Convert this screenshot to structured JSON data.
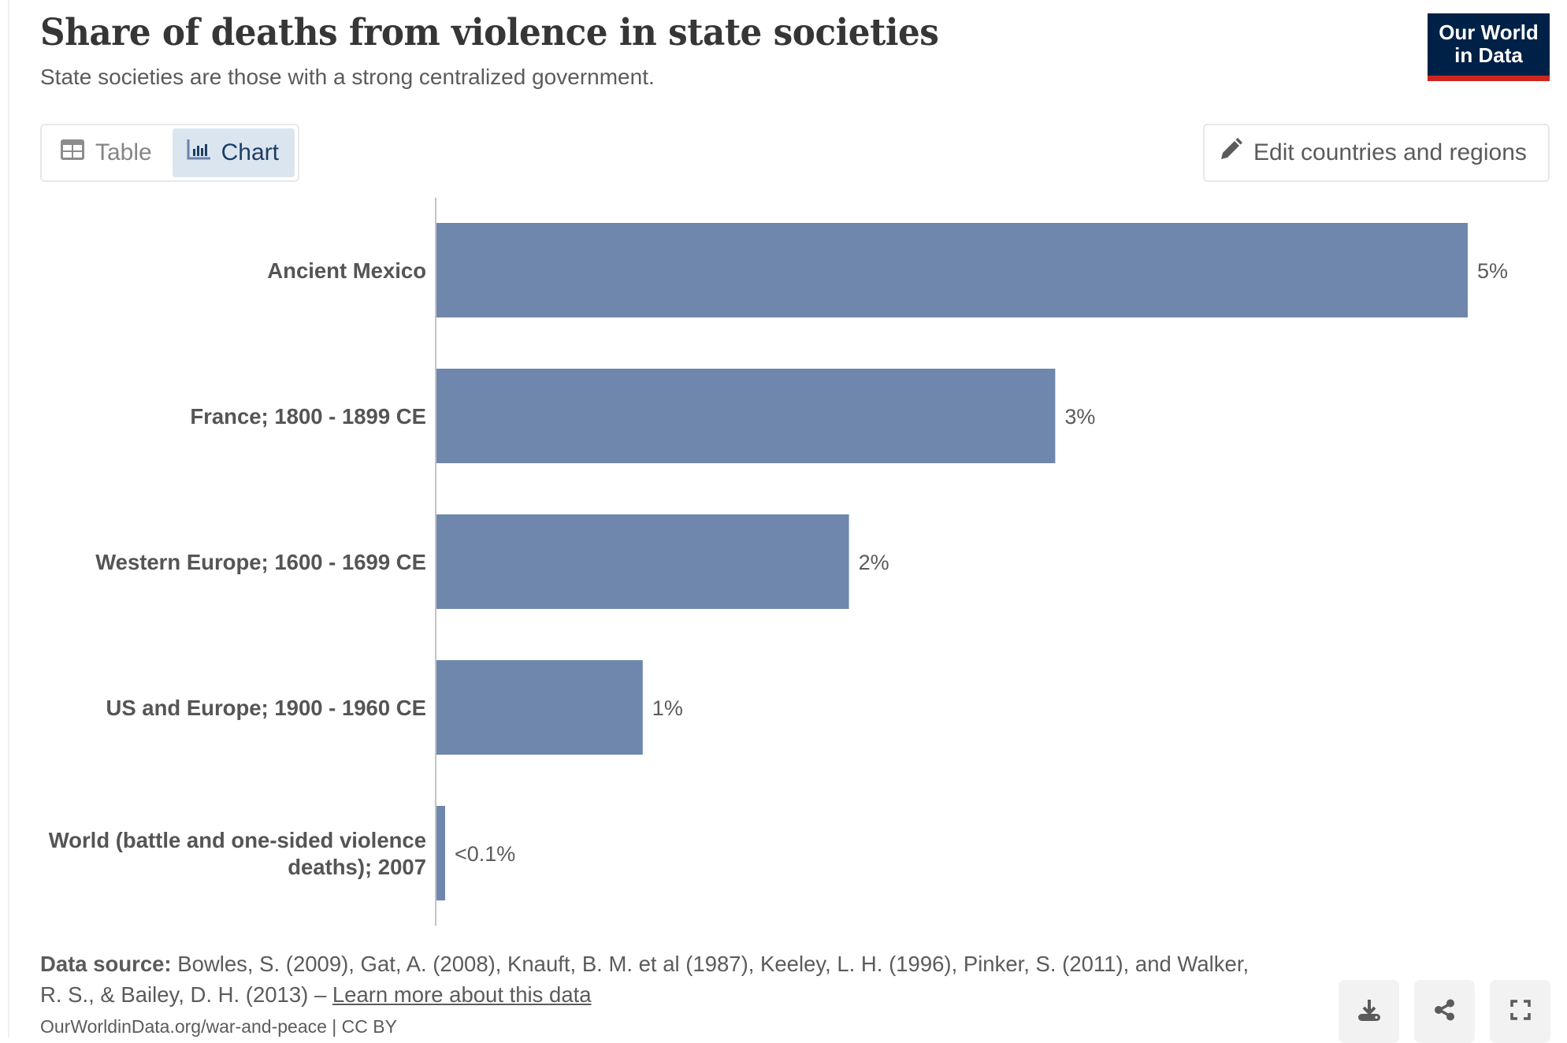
{
  "header": {
    "title": "Share of deaths from violence in state societies",
    "subtitle": "State societies are those with a strong centralized government."
  },
  "logo": {
    "line1": "Our World",
    "line2": "in Data",
    "bg_color": "#002147",
    "stripe_color": "#ce261e"
  },
  "toolbar": {
    "tabs": [
      {
        "label": "Table",
        "icon": "table-icon",
        "active": false
      },
      {
        "label": "Chart",
        "icon": "bar-chart-icon",
        "active": true
      }
    ],
    "edit_label": "Edit countries and regions",
    "edit_icon": "pencil-icon"
  },
  "chart_data": {
    "type": "bar",
    "orientation": "horizontal",
    "title": "Share of deaths from violence in state societies",
    "subtitle": "State societies are those with a strong centralized government.",
    "xlabel": "",
    "ylabel": "",
    "unit": "%",
    "bar_color": "#6f87ad",
    "grid": false,
    "legend": "none",
    "xlim": [
      0,
      5
    ],
    "categories": [
      "Ancient Mexico",
      "France; 1800 - 1899 CE",
      "Western Europe; 1600 - 1699 CE",
      "US and Europe; 1900 - 1960 CE",
      "World (battle and one-sided violence deaths); 2007"
    ],
    "category_lines": [
      [
        "Ancient Mexico"
      ],
      [
        "France; 1800 - 1899 CE"
      ],
      [
        "Western Europe; 1600 - 1699 CE"
      ],
      [
        "US and Europe; 1900 - 1960 CE"
      ],
      [
        "World (battle and one-sided violence",
        "deaths); 2007"
      ]
    ],
    "values": [
      5,
      3,
      2,
      1,
      0.04
    ],
    "value_labels": [
      "5%",
      "3%",
      "2%",
      "1%",
      "<0.1%"
    ]
  },
  "footer": {
    "source_label": "Data source:",
    "source_text": " Bowles, S. (2009), Gat, A. (2008), Knauft, B. M. et al (1987), Keeley, L. H. (1996), Pinker, S. (2011), and Walker, R. S., & Bailey, D. H. (2013) – ",
    "learn_more": "Learn more about this data",
    "url_license": "OurWorldinData.org/war-and-peace | CC BY"
  },
  "actions": [
    {
      "name": "download",
      "icon": "download-icon"
    },
    {
      "name": "share",
      "icon": "share-icon"
    },
    {
      "name": "fullscreen",
      "icon": "fullscreen-icon"
    }
  ]
}
